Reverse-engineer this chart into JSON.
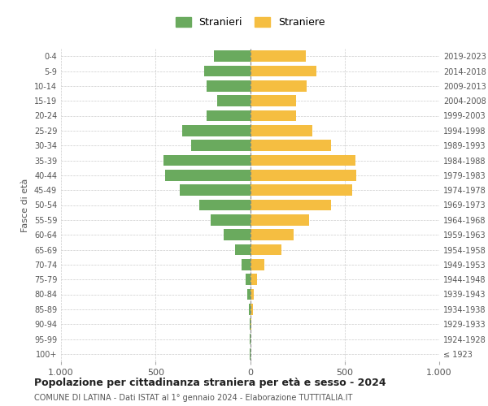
{
  "age_groups": [
    "100+",
    "95-99",
    "90-94",
    "85-89",
    "80-84",
    "75-79",
    "70-74",
    "65-69",
    "60-64",
    "55-59",
    "50-54",
    "45-49",
    "40-44",
    "35-39",
    "30-34",
    "25-29",
    "20-24",
    "15-19",
    "10-14",
    "5-9",
    "0-4"
  ],
  "birth_years": [
    "≤ 1923",
    "1924-1928",
    "1929-1933",
    "1934-1938",
    "1939-1943",
    "1944-1948",
    "1949-1953",
    "1954-1958",
    "1959-1963",
    "1964-1968",
    "1969-1973",
    "1974-1978",
    "1979-1983",
    "1984-1988",
    "1989-1993",
    "1994-1998",
    "1999-2003",
    "2004-2008",
    "2009-2013",
    "2014-2018",
    "2019-2023"
  ],
  "males": [
    2,
    2,
    4,
    8,
    14,
    22,
    45,
    80,
    140,
    210,
    270,
    370,
    450,
    460,
    310,
    360,
    230,
    175,
    230,
    245,
    190
  ],
  "females": [
    3,
    4,
    8,
    14,
    20,
    35,
    75,
    165,
    230,
    310,
    430,
    540,
    560,
    555,
    430,
    330,
    245,
    245,
    300,
    350,
    295
  ],
  "male_color": "#6aaa5e",
  "female_color": "#f5be41",
  "male_label": "Stranieri",
  "female_label": "Straniere",
  "title": "Popolazione per cittadinanza straniera per età e sesso - 2024",
  "subtitle": "COMUNE DI LATINA - Dati ISTAT al 1° gennaio 2024 - Elaborazione TUTTITALIA.IT",
  "ylabel_left": "Fasce di età",
  "xlim": 1000,
  "background_color": "#ffffff",
  "grid_color": "#cccccc"
}
